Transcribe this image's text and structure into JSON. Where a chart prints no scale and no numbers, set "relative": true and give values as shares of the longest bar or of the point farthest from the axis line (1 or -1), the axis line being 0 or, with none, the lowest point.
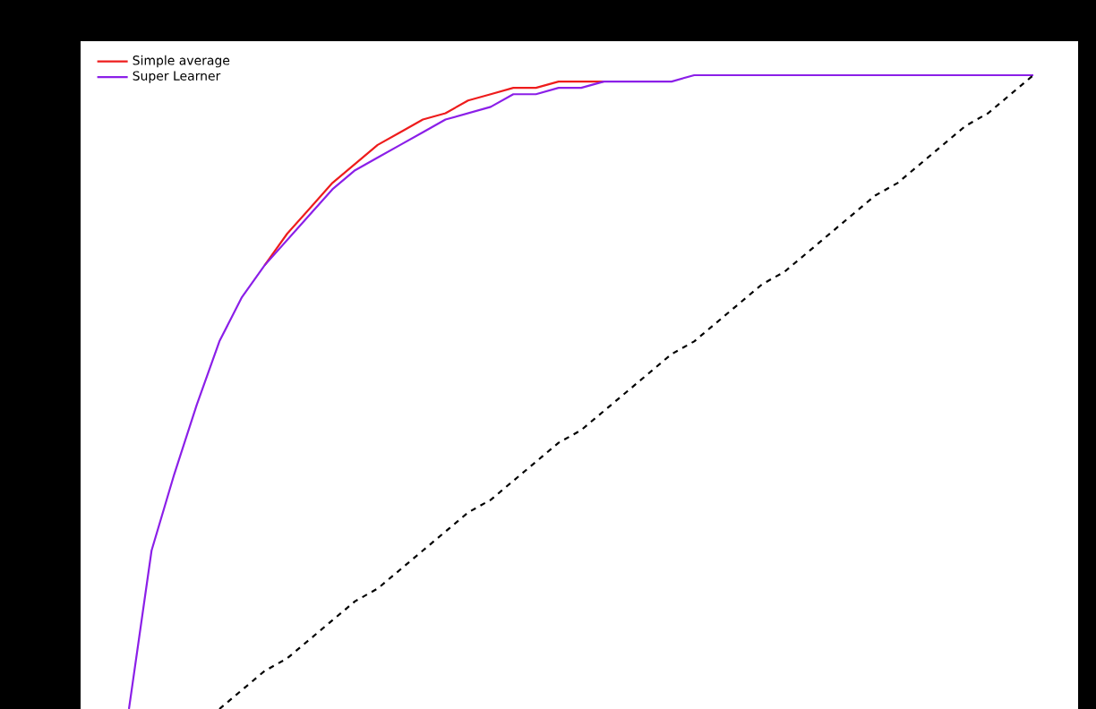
{
  "chart_data": {
    "type": "line",
    "relative": true,
    "legend": "top left",
    "marker": "none",
    "categories": [
      null,
      null,
      null,
      null,
      null,
      null,
      null,
      null,
      null,
      null,
      null,
      null,
      null,
      null,
      null,
      null,
      null,
      null,
      null,
      null,
      null,
      null,
      null,
      null,
      null,
      null,
      null,
      null,
      null,
      null,
      null,
      null,
      null,
      null,
      null,
      null,
      null,
      null,
      null,
      null,
      null
    ],
    "series": [
      {
        "name": "Simple average",
        "color": "#ee1c1c",
        "line_style": "solid",
        "values": [
          null,
          null,
          null,
          null,
          null,
          null,
          0.7,
          0.75,
          0.79,
          0.83,
          0.86,
          0.89,
          0.91,
          0.93,
          0.94,
          0.96,
          0.97,
          0.98,
          0.98,
          0.99,
          0.99,
          0.99,
          null,
          null,
          null,
          null,
          null,
          null,
          null,
          null,
          null,
          null,
          null,
          null,
          null,
          null,
          null,
          null,
          null,
          null,
          null
        ]
      },
      {
        "name": "Super Learner",
        "color": "#8b1fe8",
        "line_style": "solid",
        "values": [
          0,
          0.25,
          0.37,
          0.48,
          0.58,
          0.65,
          0.7,
          0.74,
          0.78,
          0.82,
          0.85,
          0.87,
          0.89,
          0.91,
          0.93,
          0.94,
          0.95,
          0.97,
          0.97,
          0.98,
          0.98,
          0.99,
          0.99,
          0.99,
          0.99,
          1,
          1,
          1,
          1,
          1,
          1,
          1,
          1,
          1,
          1,
          1,
          1,
          1,
          1,
          1,
          1
        ]
      },
      {
        "color": "#000000",
        "line_style": "dashed",
        "values": [
          null,
          null,
          null,
          null,
          0,
          0.03,
          0.06,
          0.08,
          0.11,
          0.14,
          0.17,
          0.19,
          0.22,
          0.25,
          0.28,
          0.31,
          0.33,
          0.36,
          0.39,
          0.42,
          0.44,
          0.47,
          0.5,
          0.53,
          0.56,
          0.58,
          0.61,
          0.64,
          0.67,
          0.69,
          0.72,
          0.75,
          0.78,
          0.81,
          0.83,
          0.86,
          0.89,
          0.92,
          0.94,
          0.97,
          1
        ]
      }
    ]
  }
}
